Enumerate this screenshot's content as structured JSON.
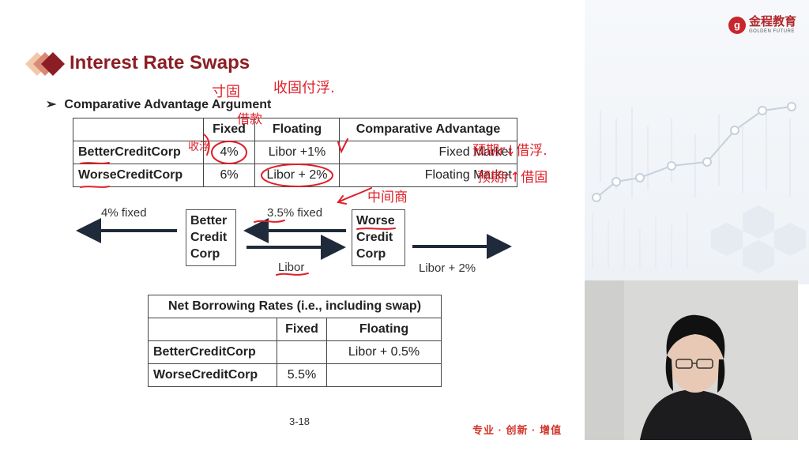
{
  "logo": {
    "mark": "g",
    "cn": "金程教育",
    "en": "GOLDEN FUTURE"
  },
  "slide": {
    "title": "Interest Rate Swaps",
    "bullet": "Comparative Advantage Argument",
    "table1": {
      "headers": [
        "",
        "Fixed",
        "Floating",
        "Comparative Advantage"
      ],
      "rows": [
        {
          "name": "BetterCreditCorp",
          "fixed": "4%",
          "floating": "Libor +1%",
          "advantage": "Fixed Market"
        },
        {
          "name": "WorseCreditCorp",
          "fixed": "6%",
          "floating": "Libor + 2%",
          "advantage": "Floating Market"
        }
      ]
    },
    "flow": {
      "left_label": "4% fixed",
      "better_box": [
        "Better",
        "Credit",
        "Corp"
      ],
      "middle_top_label": "3.5% fixed",
      "middle_bottom_label": "Libor",
      "worse_box": [
        "Worse",
        "Credit",
        "Corp"
      ],
      "right_label": "Libor + 2%"
    },
    "table2": {
      "title": "Net Borrowing Rates (i.e., including swap)",
      "headers": [
        "",
        "Fixed",
        "Floating"
      ],
      "rows": [
        {
          "name": "BetterCreditCorp",
          "fixed": "",
          "floating": "Libor + 0.5%"
        },
        {
          "name": "WorseCreditCorp",
          "fixed": "5.5%",
          "floating": ""
        }
      ]
    },
    "page_number": "3-18",
    "slogan": "专业 · 创新 · 增值"
  },
  "annotations": {
    "note1": "寸固",
    "note2": "收固付浮.",
    "note3": "借款",
    "note4": "收浮",
    "note5": "预期r↓借浮.",
    "note6": "预期r↑借固",
    "note7": "中间商"
  },
  "colors": {
    "title": "#8b1e24",
    "ink": "#e0202a",
    "slogan": "#d2352b"
  }
}
